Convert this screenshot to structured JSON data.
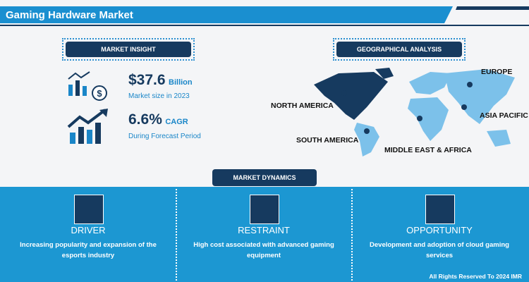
{
  "header": {
    "title": "Gaming Hardware Market"
  },
  "insight": {
    "heading": "MARKET INSIGHT",
    "size": {
      "value": "$37.6",
      "unit": "Billion",
      "caption": "Market size in 2023"
    },
    "growth": {
      "value": "6.6%",
      "unit": "CAGR",
      "caption": "During Forecast Period"
    }
  },
  "geography": {
    "heading": "GEOGRAPHICAL ANALYSIS",
    "regions": [
      "NORTH AMERICA",
      "SOUTH AMERICA",
      "EUROPE",
      "ASIA PACIFIC",
      "MIDDLE EAST & AFRICA"
    ]
  },
  "dynamics": {
    "heading": "MARKET DYNAMICS",
    "cards": [
      {
        "title": "DRIVER",
        "text": "Increasing popularity and expansion of the esports industry"
      },
      {
        "title": "RESTRAINT",
        "text": "High cost associated with advanced gaming equipment"
      },
      {
        "title": "OPPORTUNITY",
        "text": "Development and adoption of cloud gaming services"
      }
    ]
  },
  "footer": {
    "copyright": "All Rights Reserved To 2024 IMR"
  }
}
